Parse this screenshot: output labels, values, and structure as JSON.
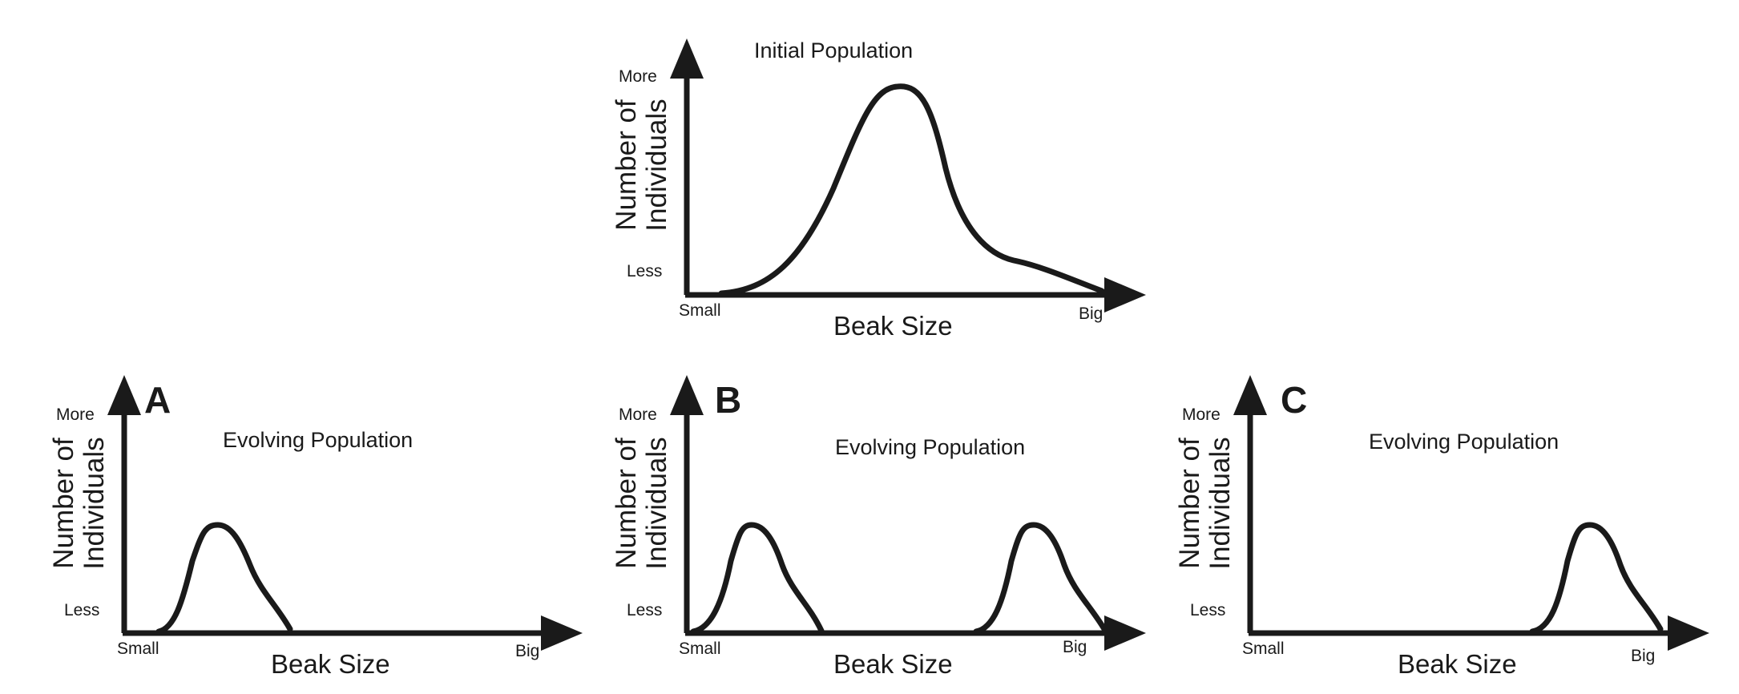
{
  "figure": {
    "panels": [
      {
        "id": "initial",
        "letter": "",
        "title": "Initial Population",
        "y_axis_label_line1": "Number of",
        "y_axis_label_line2": "Individuals",
        "y_top": "More",
        "y_bottom": "Less",
        "x_axis_label": "Beak Size",
        "x_left": "Small",
        "x_right": "Big",
        "distribution": "single broad peak centered mid-range with long tail toward big beaks"
      },
      {
        "id": "A",
        "letter": "A",
        "title": "Evolving Population",
        "y_axis_label_line1": "Number of",
        "y_axis_label_line2": "Individuals",
        "y_top": "More",
        "y_bottom": "Less",
        "x_axis_label": "Beak Size",
        "x_left": "Small",
        "x_right": "Big",
        "distribution": "narrow peak at small beak size"
      },
      {
        "id": "B",
        "letter": "B",
        "title": "Evolving Population",
        "y_axis_label_line1": "Number of",
        "y_axis_label_line2": "Individuals",
        "y_top": "More",
        "y_bottom": "Less",
        "x_axis_label": "Beak Size",
        "x_left": "Small",
        "x_right": "Big",
        "distribution": "two narrow peaks at small and big beak sizes"
      },
      {
        "id": "C",
        "letter": "C",
        "title": "Evolving Population",
        "y_axis_label_line1": "Number of",
        "y_axis_label_line2": "Individuals",
        "y_top": "More",
        "y_bottom": "Less",
        "x_axis_label": "Beak Size",
        "x_left": "Small",
        "x_right": "Big",
        "distribution": "narrow peak at big beak size"
      }
    ],
    "stroke_color": "#1a1a1a"
  }
}
